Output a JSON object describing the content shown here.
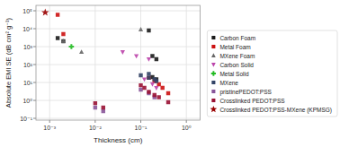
{
  "chart_data": {
    "type": "scatter",
    "xlabel": "Thickness (cm)",
    "ylabel": "Absolute EMI SE (dB cm² g⁻¹)",
    "log": true,
    "grid": true,
    "legend": "right",
    "xlim": [
      0.0005011872336272722,
      1.9952623149688795
    ],
    "ylim": [
      0.07943282347242814,
      199526.2314968879
    ],
    "xticks": [
      {
        "value": 0.001,
        "label": "10⁻³"
      },
      {
        "value": 0.01,
        "label": "10⁻²"
      },
      {
        "value": 0.1,
        "label": "10⁻¹"
      },
      {
        "value": 1,
        "label": "10⁰"
      }
    ],
    "yticks": [
      {
        "value": 0.1,
        "label": "10⁻¹"
      },
      {
        "value": 1,
        "label": "10⁰"
      },
      {
        "value": 10,
        "label": "10¹"
      },
      {
        "value": 100,
        "label": "10²"
      },
      {
        "value": 1000,
        "label": "10³"
      },
      {
        "value": 10000,
        "label": "10⁴"
      },
      {
        "value": 100000,
        "label": "10⁵"
      }
    ],
    "series": [
      {
        "name": "Carbon Foam",
        "color": "#1a1a1a",
        "marker": "square",
        "x": [
          0.0015,
          0.002,
          0.15,
          0.18,
          0.22,
          0.18,
          0.22
        ],
        "values": [
          3000,
          2000,
          8000,
          300,
          200,
          20,
          15
        ]
      },
      {
        "name": "Metal Foam",
        "color": "#cc1111",
        "marker": "square",
        "x": [
          0.0015,
          0.002,
          0.15,
          0.2,
          0.25,
          0.3,
          0.4
        ],
        "values": [
          60000,
          5000,
          18,
          12,
          8,
          5,
          2.5
        ]
      },
      {
        "name": "MXene Foam",
        "color": "#666666",
        "marker": "triangle-up",
        "x": [
          0.002,
          0.005,
          0.1
        ],
        "values": [
          2000,
          500,
          9000
        ]
      },
      {
        "name": "Carbon Solid",
        "color": "#bb44aa",
        "marker": "triangle-down",
        "x": [
          0.04,
          0.08,
          0.12,
          0.18,
          0.22,
          0.15
        ],
        "values": [
          500,
          300,
          15,
          8,
          5,
          200
        ]
      },
      {
        "name": "Metal Solid",
        "color": "#22bb22",
        "marker": "plus",
        "x": [
          0.003
        ],
        "values": [
          1000
        ]
      },
      {
        "name": "MXene",
        "color": "#334466",
        "marker": "square",
        "x": [
          0.1,
          0.15,
          0.2,
          0.22,
          0.15
        ],
        "values": [
          25,
          18,
          15,
          12,
          30
        ]
      },
      {
        "name": "pristinePEDOT:PSS",
        "color": "#885599",
        "marker": "square",
        "x": [
          0.01,
          0.015,
          0.1,
          0.15,
          0.2
        ],
        "values": [
          0.4,
          0.25,
          4,
          2.5,
          1.5
        ]
      },
      {
        "name": "Crosslinked PEDOT:PSS",
        "color": "#991133",
        "marker": "square",
        "x": [
          0.01,
          0.015,
          0.1,
          0.12,
          0.15,
          0.2,
          0.25,
          0.4
        ],
        "values": [
          0.7,
          0.4,
          7,
          5,
          3,
          2,
          1.5,
          0.8
        ]
      },
      {
        "name": "Crosslinked PEDOT:PSS-MXene (KPMSG)",
        "color": "#990000",
        "marker": "star",
        "x": [
          0.0008
        ],
        "values": [
          80000
        ]
      }
    ]
  }
}
